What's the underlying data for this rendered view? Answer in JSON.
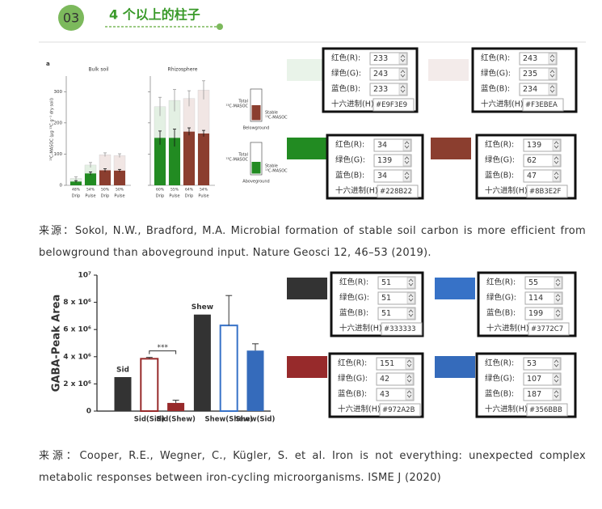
{
  "header": {
    "number": "03",
    "title": "4 个以上的柱子"
  },
  "chart_data": [
    {
      "type": "bar",
      "label": "a",
      "ylabel": "¹³C-MASOC (µg ¹³C g⁻¹ dry soil)",
      "ylim": [
        0,
        350
      ],
      "yticks": [
        0,
        100,
        200,
        300
      ],
      "subplots": [
        {
          "title": "Bulk soil",
          "categories": [
            "Drip",
            "Pulse",
            "Drip",
            "Pulse"
          ],
          "percent_labels": [
            "48%",
            "54%",
            "50%",
            "50%"
          ],
          "series": [
            {
              "name": "Total",
              "colors": [
                "#e3f0e3",
                "#e3f0e3",
                "#f1e6e4",
                "#f1e6e4"
              ],
              "values": [
                22,
                65,
                98,
                95
              ],
              "errors": [
                5,
                8,
                6,
                6
              ]
            },
            {
              "name": "Stable",
              "colors": [
                "#228B22",
                "#228B22",
                "#8B3E2F",
                "#8B3E2F"
              ],
              "values": [
                12,
                38,
                48,
                47
              ],
              "errors": [
                3,
                5,
                5,
                4
              ]
            }
          ]
        },
        {
          "title": "Rhizosphere",
          "categories": [
            "Drip",
            "Pulse",
            "Drip",
            "Pulse"
          ],
          "percent_labels": [
            "60%",
            "55%",
            "64%",
            "54%"
          ],
          "series": [
            {
              "name": "Total",
              "colors": [
                "#e3f0e3",
                "#e3f0e3",
                "#f1e6e4",
                "#f1e6e4"
              ],
              "values": [
                252,
                272,
                278,
                305
              ],
              "errors": [
                30,
                35,
                25,
                30
              ]
            },
            {
              "name": "Stable",
              "colors": [
                "#228B22",
                "#228B22",
                "#8B3E2F",
                "#8B3E2F"
              ],
              "values": [
                152,
                152,
                172,
                166
              ],
              "errors": [
                22,
                28,
                12,
                10
              ]
            }
          ]
        }
      ],
      "legend": {
        "total": "Total",
        "total_unit": "¹³C-MASOC",
        "stable": "Stable",
        "stable_unit": "¹³C-MASOC",
        "items": [
          {
            "name": "Belowground",
            "color": "#8B3E2F"
          },
          {
            "name": "Aboveground",
            "color": "#228B22"
          }
        ]
      }
    },
    {
      "type": "bar",
      "ylabel": "GABA-Peak Area",
      "ylim": [
        0,
        10000000
      ],
      "yticks": [
        0,
        {
          "value": 2000000,
          "label": "2 x 10⁶"
        },
        {
          "value": 4000000,
          "label": "4 x 10⁶"
        },
        {
          "value": 6000000,
          "label": "6 x 10⁶"
        },
        {
          "value": 8000000,
          "label": "8 x 10⁶"
        },
        {
          "value": 10000000,
          "label": "10⁷"
        }
      ],
      "categories": [
        null,
        "Sid(Sid)",
        "Sid(Shew)",
        null,
        "Shew(Shew)",
        "Shew(Sid)"
      ],
      "bar_labels": [
        "Sid",
        null,
        null,
        "Shew",
        null,
        null
      ],
      "values": [
        2500000,
        3850000,
        600000,
        7100000,
        6300000,
        4450000
      ],
      "errors": [
        0,
        100000,
        200000,
        0,
        2200000,
        500000
      ],
      "colors": [
        "#333333",
        "#972A2B",
        "#972A2B",
        "#333333",
        "#3772C7",
        "#356BBB"
      ],
      "filled": [
        true,
        false,
        true,
        true,
        false,
        true
      ],
      "significance": {
        "text": "***",
        "between": [
          1,
          2
        ]
      }
    }
  ],
  "panels": [
    {
      "rows": [
        {
          "label": "红色(R):",
          "value": 233
        },
        {
          "label": "绿色(G):",
          "value": 243
        },
        {
          "label": "蓝色(B):",
          "value": 233
        }
      ],
      "hex_label": "十六进制(H):",
      "hex": "#E9F3E9"
    },
    {
      "rows": [
        {
          "label": "红色(R):",
          "value": 243
        },
        {
          "label": "绿色(G):",
          "value": 235
        },
        {
          "label": "蓝色(B):",
          "value": 234
        }
      ],
      "hex_label": "十六进制(H):",
      "hex": "#F3EBEA"
    },
    {
      "rows": [
        {
          "label": "红色(R):",
          "value": 34
        },
        {
          "label": "绿色(G):",
          "value": 139
        },
        {
          "label": "蓝色(B):",
          "value": 34
        }
      ],
      "hex_label": "十六进制(H):",
      "hex": "#228B22"
    },
    {
      "rows": [
        {
          "label": "红色(R):",
          "value": 139
        },
        {
          "label": "绿色(G):",
          "value": 62
        },
        {
          "label": "蓝色(B):",
          "value": 47
        }
      ],
      "hex_label": "十六进制(H):",
      "hex": "#8B3E2F"
    },
    {
      "rows": [
        {
          "label": "红色(R):",
          "value": 51
        },
        {
          "label": "绿色(G):",
          "value": 51
        },
        {
          "label": "蓝色(B):",
          "value": 51
        }
      ],
      "hex_label": "十六进制(H):",
      "hex": "#333333"
    },
    {
      "rows": [
        {
          "label": "红色(R):",
          "value": 55
        },
        {
          "label": "绿色(G):",
          "value": 114
        },
        {
          "label": "蓝色(B):",
          "value": 199
        }
      ],
      "hex_label": "十六进制(H):",
      "hex": "#3772C7"
    },
    {
      "rows": [
        {
          "label": "红色(R):",
          "value": 151
        },
        {
          "label": "绿色(G):",
          "value": 42
        },
        {
          "label": "蓝色(B):",
          "value": 43
        }
      ],
      "hex_label": "十六进制(H):",
      "hex": "#972A2B"
    },
    {
      "rows": [
        {
          "label": "红色(R):",
          "value": 53
        },
        {
          "label": "绿色(G):",
          "value": 107
        },
        {
          "label": "蓝色(B):",
          "value": 187
        }
      ],
      "hex_label": "十六进制(H):",
      "hex": "#356BBB"
    }
  ],
  "captions": [
    "来源：Sokol, N.W., Bradford, M.A. Microbial formation of stable soil carbon is more efficient from belowground than aboveground input. Nature Geosci 12, 46–53 (2019).",
    "来源：Cooper, R.E., Wegner, C., Kügler, S. et al. Iron is not everything: unexpected complex metabolic responses between iron-cycling microorganisms. ISME J (2020)"
  ]
}
